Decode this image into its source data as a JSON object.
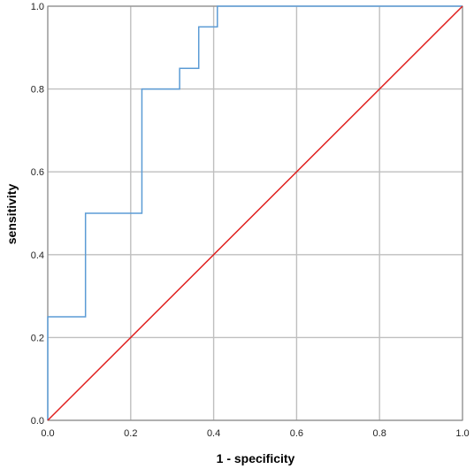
{
  "chart_data": {
    "type": "line",
    "title": "",
    "xlabel": "1 - specificity",
    "ylabel": "sensitivity",
    "xlim": [
      0.0,
      1.0
    ],
    "ylim": [
      0.0,
      1.0
    ],
    "xticks": [
      "0.0",
      "0.2",
      "0.4",
      "0.6",
      "0.8",
      "1.0"
    ],
    "yticks": [
      "0.0",
      "0.2",
      "0.4",
      "0.6",
      "0.8",
      "1.0"
    ],
    "grid": true,
    "legend": "none",
    "series": [
      {
        "color": "#5b9bd5",
        "x": [
          0.0,
          0.0,
          0.091,
          0.091,
          0.227,
          0.227,
          0.318,
          0.318,
          0.364,
          0.364,
          0.409,
          0.409,
          1.0
        ],
        "y": [
          0.0,
          0.25,
          0.25,
          0.5,
          0.5,
          0.8,
          0.8,
          0.85,
          0.85,
          0.95,
          0.95,
          1.0,
          1.0
        ]
      },
      {
        "color": "#e0201f",
        "x": [
          0.0,
          1.0
        ],
        "y": [
          0.0,
          1.0
        ]
      }
    ],
    "colors": {
      "grid": "#bfbfbf",
      "frame": "#808080"
    }
  }
}
